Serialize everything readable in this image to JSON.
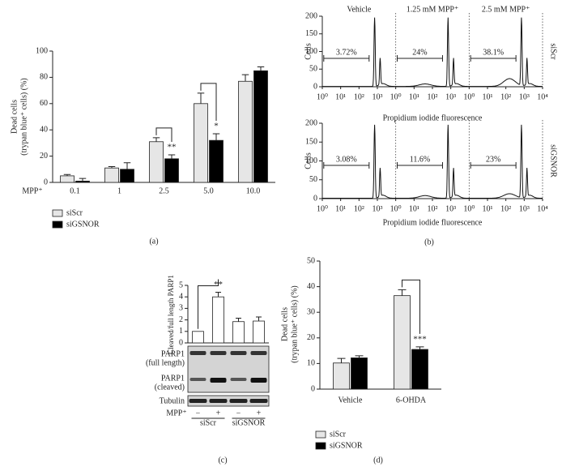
{
  "chart_data": [
    {
      "type": "bar",
      "panel_label": "(a)",
      "y_label": [
        "Dead cells",
        "(trypan blue⁺ cells) (%)"
      ],
      "x_label": "MPP⁺",
      "categories": [
        "0.1",
        "1",
        "2.5",
        "5.0",
        "10.0"
      ],
      "series": [
        {
          "name": "siScr",
          "color": "#e6e6e6",
          "values": [
            5,
            11,
            31,
            60,
            77
          ],
          "errors": [
            1,
            1,
            3,
            8,
            5
          ]
        },
        {
          "name": "siGSNOR",
          "color": "#000000",
          "values": [
            1,
            10,
            18,
            32,
            85
          ],
          "errors": [
            2,
            5,
            3,
            5,
            3
          ],
          "marks": [
            null,
            null,
            "**",
            "*",
            null
          ]
        }
      ],
      "ylim": [
        0,
        100
      ],
      "yticks": [
        0,
        20,
        40,
        60,
        80,
        100
      ]
    },
    {
      "type": "flow-histogram",
      "panel_label": "(b)",
      "conditions": [
        "Vehicle",
        "1.25 mM MPP⁺",
        "2.5 mM MPP⁺"
      ],
      "rows": [
        {
          "name": "siScr",
          "values": [
            3.72,
            24,
            38.1
          ],
          "value_labels": [
            "3.72%",
            "24%",
            "38.1%"
          ]
        },
        {
          "name": "siGSNOR",
          "values": [
            3.08,
            11.6,
            23
          ],
          "value_labels": [
            "3.08%",
            "11.6%",
            "23%"
          ]
        }
      ],
      "y_label": "Cells",
      "x_label": "Propidium iodide fluorescence",
      "log_x": true,
      "xlim": [
        1,
        10000
      ],
      "xticks": [
        {
          "value": 1,
          "label": "10⁰"
        },
        {
          "value": 10,
          "label": "10¹"
        },
        {
          "value": 100,
          "label": "10²"
        },
        {
          "value": 1000,
          "label": "10³"
        },
        {
          "value": 10000,
          "label": "10⁴"
        }
      ],
      "ylim": [
        0,
        200
      ],
      "yticks": [
        0,
        50,
        100,
        150,
        200
      ]
    },
    {
      "type": "bar",
      "panel_label": "(c)",
      "y_label": [
        "Cleaved/full length PARP1"
      ],
      "x_label": "MPP⁺",
      "categories": [
        "−",
        "+",
        "−",
        "+"
      ],
      "group_labels": [
        "siScr",
        "siGSNOR"
      ],
      "values": [
        1,
        4.0,
        1.85,
        1.9
      ],
      "errors": [
        0,
        0.4,
        0.3,
        0.35
      ],
      "marks": [
        null,
        "**",
        null,
        null
      ],
      "color": "#ffffff",
      "blot_labels": [
        [
          "PARP1",
          "(full length)"
        ],
        [
          "PARP1",
          "(cleaved)"
        ],
        [
          "Tubulin"
        ]
      ],
      "ylim": [
        0,
        5
      ],
      "yticks": [
        0,
        1,
        2,
        3,
        4,
        5
      ]
    },
    {
      "type": "bar",
      "panel_label": "(d)",
      "y_label": [
        "Dead cells",
        "(trypan blue⁺ cells) (%)"
      ],
      "categories": [
        "Vehicle",
        "6-OHDA"
      ],
      "series": [
        {
          "name": "siScr",
          "color": "#e6e6e6",
          "values": [
            10.2,
            36.5
          ],
          "errors": [
            1.8,
            2.3
          ]
        },
        {
          "name": "siGSNOR",
          "color": "#000000",
          "values": [
            12.2,
            15.5
          ],
          "errors": [
            0.8,
            1.0
          ],
          "marks": [
            null,
            "***"
          ]
        }
      ],
      "ylim": [
        0,
        50
      ],
      "yticks": [
        0,
        10,
        20,
        30,
        40,
        50
      ]
    }
  ]
}
